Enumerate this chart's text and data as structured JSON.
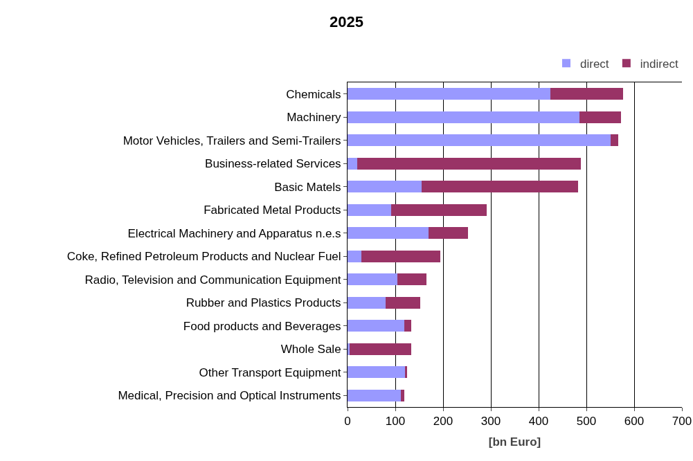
{
  "chart_data": {
    "type": "bar",
    "title": "2025",
    "xlabel": "[bn Euro]",
    "orientation": "horizontal",
    "stacked": true,
    "categories": [
      "Chemicals",
      "Machinery",
      "Motor Vehicles, Trailers and Semi-Trailers",
      "Business-related Services",
      "Basic Matels",
      "Fabricated Metal Products",
      "Electrical Machinery and Apparatus n.e.s",
      "Coke, Refined Petroleum Products and Nuclear Fuel",
      "Radio, Television and Communication Equipment",
      "Rubber and Plastics Products",
      "Food products and Beverages",
      "Whole Sale",
      "Other Transport Equipment",
      "Medical, Precision and Optical Instruments"
    ],
    "series": [
      {
        "name": "direct",
        "color": "#9999ff",
        "values": [
          424,
          486,
          551,
          21,
          155,
          91,
          169,
          29,
          104,
          79,
          119,
          4,
          121,
          111
        ]
      },
      {
        "name": "indirect",
        "color": "#993366",
        "values": [
          153,
          87,
          15,
          468,
          327,
          200,
          83,
          165,
          61,
          73,
          14,
          129,
          3,
          8
        ]
      }
    ],
    "xlim": [
      0,
      700
    ],
    "xticks": [
      0,
      100,
      200,
      300,
      400,
      500,
      600,
      700
    ],
    "grid": "x",
    "legend": "top right"
  }
}
